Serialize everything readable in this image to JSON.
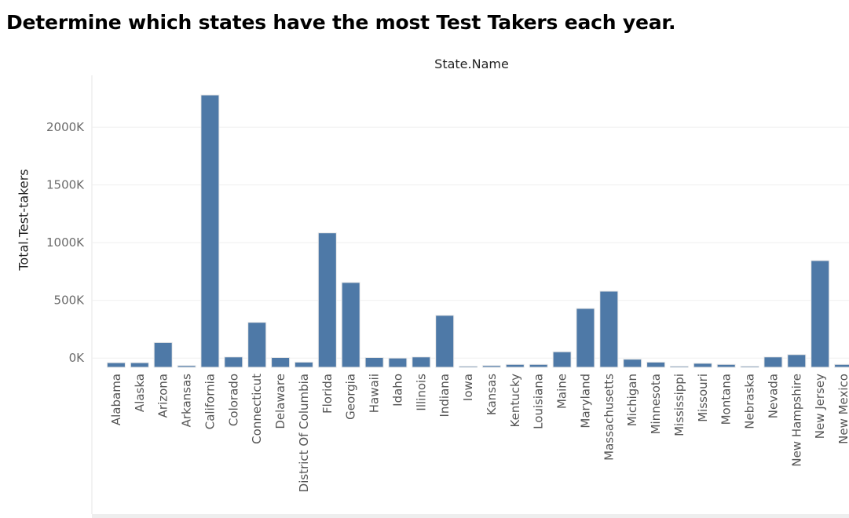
{
  "page": {
    "title": "Determine which states have the most Test Takers each year."
  },
  "chart_data": {
    "type": "bar",
    "title": "Determine which states have the most Test Takers each year.",
    "column_header": "State.Name",
    "xlabel": "",
    "ylabel": "Total.Test-takers",
    "ylim": [
      -80,
      2450
    ],
    "yticks": [
      0,
      500,
      1000,
      1500,
      2000
    ],
    "ytick_labels": [
      "0K",
      "500K",
      "1000K",
      "1500K",
      "2000K"
    ],
    "grid": true,
    "legend": "none",
    "bar_color": "#4e79a7",
    "categories": [
      "Alabama",
      "Alaska",
      "Arizona",
      "Arkansas",
      "California",
      "Colorado",
      "Connecticut",
      "Delaware",
      "District Of Columbia",
      "Florida",
      "Georgia",
      "Hawaii",
      "Idaho",
      "Illinois",
      "Indiana",
      "Iowa",
      "Kansas",
      "Kentucky",
      "Louisiana",
      "Maine",
      "Maryland",
      "Massachusetts",
      "Michigan",
      "Minnesota",
      "Mississippi",
      "Missouri",
      "Montana",
      "Nebraska",
      "Nevada",
      "New Hampshire",
      "New Jersey",
      "New Mexico"
    ],
    "values": [
      -40,
      -40,
      135,
      -65,
      2280,
      10,
      310,
      5,
      -35,
      1085,
      655,
      5,
      0,
      10,
      370,
      -75,
      -65,
      -55,
      -55,
      55,
      430,
      580,
      -10,
      -35,
      -75,
      -45,
      -55,
      -75,
      10,
      30,
      845,
      -55
    ],
    "value_unit": "K"
  }
}
